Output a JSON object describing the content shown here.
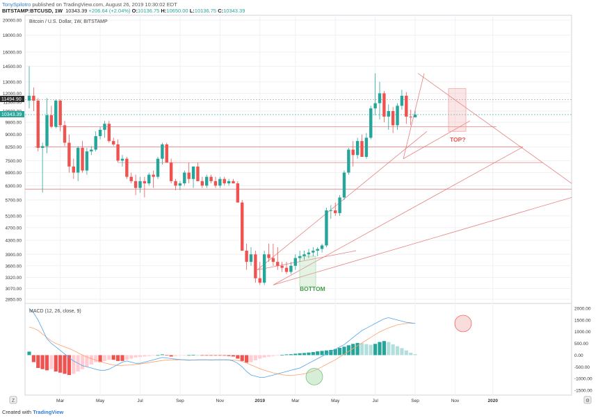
{
  "header": {
    "author": "TonySpilotro",
    "published_text": "published on TradingView.com, August 26, 2019 10:30:02 EDT",
    "symbol": "BITSTAMP:BTCUSD, 1W",
    "last": "10343.39",
    "change": "+206.64 (+2.04%)",
    "open_label": "O:",
    "open": "10136.75",
    "high_label": "H:",
    "high": "10650.00",
    "low_label": "L:",
    "low": "10136.75",
    "close_label": "C:",
    "close": "10343.39"
  },
  "chart_title": "Bitcoin / U.S. Dollar, 1W, BITSTAMP",
  "macd_title": "MACD (12, 26, close, 9)",
  "annotations": {
    "top": "TOP?",
    "bottom": "BOTTOM"
  },
  "price_badges": {
    "high": "11494.90",
    "current": "10343.39"
  },
  "footer": {
    "created": "Created with",
    "brand": "TradingView"
  },
  "colors": {
    "up": "#26a69a",
    "down": "#ef5350",
    "hist_up_dark": "#26a69a",
    "hist_up_light": "#b2dfdb",
    "hist_down_dark": "#ef5350",
    "hist_down_light": "#ffcdd2",
    "macd_line": "#4fa3e8",
    "signal_line": "#ff9f6a",
    "trendline": "#e57373",
    "annotation_top": "#ef5350",
    "annotation_bottom": "#4caf50"
  },
  "chart_data": {
    "type": "candlestick",
    "y_ticks": [
      2850,
      3070,
      3320,
      3600,
      3900,
      4300,
      4700,
      5100,
      5700,
      6300,
      6900,
      7500,
      8250,
      9000,
      9800,
      10600,
      11300,
      12000,
      13000,
      14500,
      16000,
      18000,
      20000
    ],
    "x_ticks": [
      "Mar",
      "May",
      "Jul",
      "Sep",
      "Nov",
      "2019",
      "Mar",
      "May",
      "Jul",
      "Sep",
      "Nov",
      "2020"
    ],
    "candles": [
      {
        "o": 11400,
        "h": 14500,
        "l": 10800,
        "c": 11800
      },
      {
        "o": 11800,
        "h": 12500,
        "l": 10600,
        "c": 11400
      },
      {
        "o": 11400,
        "h": 11600,
        "l": 8000,
        "c": 8200
      },
      {
        "o": 8200,
        "h": 8500,
        "l": 6000,
        "c": 8300
      },
      {
        "o": 8300,
        "h": 11600,
        "l": 7900,
        "c": 10300
      },
      {
        "o": 10300,
        "h": 11000,
        "l": 9400,
        "c": 9500
      },
      {
        "o": 9500,
        "h": 11500,
        "l": 9400,
        "c": 11400
      },
      {
        "o": 11400,
        "h": 11500,
        "l": 9200,
        "c": 9600
      },
      {
        "o": 9600,
        "h": 9900,
        "l": 8300,
        "c": 8500
      },
      {
        "o": 8500,
        "h": 9000,
        "l": 6900,
        "c": 7200
      },
      {
        "o": 7200,
        "h": 7600,
        "l": 6600,
        "c": 6900
      },
      {
        "o": 6900,
        "h": 8300,
        "l": 6500,
        "c": 8200
      },
      {
        "o": 8200,
        "h": 8600,
        "l": 6900,
        "c": 7000
      },
      {
        "o": 7000,
        "h": 8200,
        "l": 6800,
        "c": 8000
      },
      {
        "o": 8000,
        "h": 8300,
        "l": 7800,
        "c": 8100
      },
      {
        "o": 8100,
        "h": 9200,
        "l": 8000,
        "c": 8900
      },
      {
        "o": 8900,
        "h": 9500,
        "l": 8700,
        "c": 9300
      },
      {
        "o": 9300,
        "h": 9900,
        "l": 8800,
        "c": 9700
      },
      {
        "o": 9700,
        "h": 9900,
        "l": 8500,
        "c": 8600
      },
      {
        "o": 8600,
        "h": 8800,
        "l": 8300,
        "c": 8400
      },
      {
        "o": 8400,
        "h": 8700,
        "l": 7400,
        "c": 7500
      },
      {
        "o": 7500,
        "h": 7800,
        "l": 7200,
        "c": 7600
      },
      {
        "o": 7600,
        "h": 7700,
        "l": 6600,
        "c": 6700
      },
      {
        "o": 6700,
        "h": 6900,
        "l": 6400,
        "c": 6500
      },
      {
        "o": 6500,
        "h": 6800,
        "l": 5900,
        "c": 6200
      },
      {
        "o": 6200,
        "h": 6700,
        "l": 6000,
        "c": 6500
      },
      {
        "o": 6500,
        "h": 6700,
        "l": 5800,
        "c": 6400
      },
      {
        "o": 6400,
        "h": 6900,
        "l": 6300,
        "c": 6800
      },
      {
        "o": 6800,
        "h": 7000,
        "l": 6200,
        "c": 6700
      },
      {
        "o": 6700,
        "h": 7700,
        "l": 6600,
        "c": 7600
      },
      {
        "o": 7600,
        "h": 8500,
        "l": 7300,
        "c": 8400
      },
      {
        "o": 8400,
        "h": 8500,
        "l": 7400,
        "c": 7400
      },
      {
        "o": 7400,
        "h": 7600,
        "l": 6400,
        "c": 6500
      },
      {
        "o": 6500,
        "h": 6600,
        "l": 6100,
        "c": 6300
      },
      {
        "o": 6300,
        "h": 6500,
        "l": 6100,
        "c": 6400
      },
      {
        "o": 6400,
        "h": 7000,
        "l": 6300,
        "c": 6900
      },
      {
        "o": 6900,
        "h": 7400,
        "l": 6400,
        "c": 6600
      },
      {
        "o": 6600,
        "h": 7200,
        "l": 6200,
        "c": 7200
      },
      {
        "o": 7200,
        "h": 7400,
        "l": 6500,
        "c": 6500
      },
      {
        "o": 6500,
        "h": 6700,
        "l": 6200,
        "c": 6300
      },
      {
        "o": 6300,
        "h": 6800,
        "l": 6200,
        "c": 6700
      },
      {
        "o": 6700,
        "h": 6800,
        "l": 6400,
        "c": 6500
      },
      {
        "o": 6500,
        "h": 6700,
        "l": 6200,
        "c": 6300
      },
      {
        "o": 6300,
        "h": 6700,
        "l": 6200,
        "c": 6600
      },
      {
        "o": 6600,
        "h": 6700,
        "l": 6300,
        "c": 6400
      },
      {
        "o": 6400,
        "h": 6600,
        "l": 6300,
        "c": 6500
      },
      {
        "o": 6500,
        "h": 6600,
        "l": 6400,
        "c": 6400
      },
      {
        "o": 6400,
        "h": 6500,
        "l": 5600,
        "c": 5600
      },
      {
        "o": 5600,
        "h": 5700,
        "l": 4000,
        "c": 4000
      },
      {
        "o": 4000,
        "h": 4200,
        "l": 3500,
        "c": 3700
      },
      {
        "o": 3700,
        "h": 4100,
        "l": 3600,
        "c": 3900
      },
      {
        "o": 3900,
        "h": 4000,
        "l": 3200,
        "c": 3300
      },
      {
        "o": 3300,
        "h": 3700,
        "l": 3150,
        "c": 3200
      },
      {
        "o": 3200,
        "h": 4000,
        "l": 3150,
        "c": 3900
      },
      {
        "o": 3900,
        "h": 4200,
        "l": 3700,
        "c": 3800
      },
      {
        "o": 3800,
        "h": 4200,
        "l": 3600,
        "c": 3700
      },
      {
        "o": 3700,
        "h": 4100,
        "l": 3500,
        "c": 3600
      },
      {
        "o": 3600,
        "h": 3700,
        "l": 3450,
        "c": 3550
      },
      {
        "o": 3550,
        "h": 3700,
        "l": 3400,
        "c": 3450
      },
      {
        "o": 3450,
        "h": 3700,
        "l": 3400,
        "c": 3600
      },
      {
        "o": 3600,
        "h": 3900,
        "l": 3500,
        "c": 3800
      },
      {
        "o": 3800,
        "h": 4000,
        "l": 3700,
        "c": 3850
      },
      {
        "o": 3850,
        "h": 4000,
        "l": 3750,
        "c": 3900
      },
      {
        "o": 3900,
        "h": 4050,
        "l": 3800,
        "c": 3950
      },
      {
        "o": 3950,
        "h": 4100,
        "l": 3850,
        "c": 4000
      },
      {
        "o": 4000,
        "h": 4100,
        "l": 3850,
        "c": 4050
      },
      {
        "o": 4050,
        "h": 4200,
        "l": 3950,
        "c": 4150
      },
      {
        "o": 4150,
        "h": 5400,
        "l": 4100,
        "c": 5300
      },
      {
        "o": 5300,
        "h": 5500,
        "l": 5000,
        "c": 5300
      },
      {
        "o": 5300,
        "h": 5600,
        "l": 5100,
        "c": 5200
      },
      {
        "o": 5200,
        "h": 5900,
        "l": 5100,
        "c": 5800
      },
      {
        "o": 5800,
        "h": 7000,
        "l": 5700,
        "c": 6900
      },
      {
        "o": 6900,
        "h": 8200,
        "l": 6800,
        "c": 8100
      },
      {
        "o": 8100,
        "h": 8600,
        "l": 7200,
        "c": 7800
      },
      {
        "o": 7800,
        "h": 8800,
        "l": 7600,
        "c": 8600
      },
      {
        "o": 8600,
        "h": 9000,
        "l": 7700,
        "c": 7700
      },
      {
        "o": 7700,
        "h": 9100,
        "l": 7600,
        "c": 8800
      },
      {
        "o": 8800,
        "h": 11000,
        "l": 8700,
        "c": 10800
      },
      {
        "o": 10800,
        "h": 13800,
        "l": 10300,
        "c": 11200
      },
      {
        "o": 11200,
        "h": 13000,
        "l": 10000,
        "c": 12000
      },
      {
        "o": 12000,
        "h": 12200,
        "l": 9800,
        "c": 10200
      },
      {
        "o": 10200,
        "h": 11100,
        "l": 9300,
        "c": 10600
      },
      {
        "o": 10600,
        "h": 10900,
        "l": 9100,
        "c": 9600
      },
      {
        "o": 9600,
        "h": 11200,
        "l": 9300,
        "c": 11000
      },
      {
        "o": 11000,
        "h": 12300,
        "l": 10700,
        "c": 11800
      },
      {
        "o": 11800,
        "h": 12100,
        "l": 9700,
        "c": 10200
      },
      {
        "o": 10200,
        "h": 10700,
        "l": 9600,
        "c": 10150
      },
      {
        "o": 10150,
        "h": 10650,
        "l": 10136,
        "c": 10343
      }
    ],
    "macd": {
      "y_ticks": [
        -1500,
        -1000,
        -500,
        0,
        500,
        1000,
        1500,
        2000
      ],
      "histogram": [
        150,
        -300,
        -550,
        -600,
        -650,
        -600,
        -700,
        -750,
        -800,
        -850,
        -800,
        -700,
        -600,
        -500,
        -400,
        -300,
        -300,
        -250,
        -200,
        -200,
        -250,
        -250,
        -200,
        -150,
        -100,
        -80,
        -60,
        -40,
        -20,
        0,
        30,
        -20,
        -60,
        -40,
        -20,
        -10,
        0,
        10,
        0,
        -10,
        -10,
        -10,
        -15,
        -20,
        -25,
        -40,
        -60,
        -150,
        -250,
        -320,
        -300,
        -220,
        -150,
        -100,
        -70,
        -40,
        -10,
        10,
        30,
        40,
        60,
        80,
        90,
        110,
        130,
        160,
        180,
        200,
        220,
        260,
        310,
        360,
        420,
        480,
        520,
        510,
        470,
        440,
        480,
        560,
        600,
        560,
        460,
        380,
        300,
        200,
        100,
        40
      ],
      "macd_line": [
        2000,
        1800,
        1500,
        1100,
        700,
        500,
        350,
        200,
        50,
        -100,
        -250,
        -350,
        -450,
        -500,
        -550,
        -600,
        -650,
        -650,
        -600,
        -500,
        -400,
        -300,
        -250,
        -300,
        -350,
        -350,
        -300,
        -250,
        -200,
        -150,
        -100,
        -120,
        -150,
        -170,
        -190,
        -200,
        -220,
        -210,
        -200,
        -200,
        -200,
        -210,
        -200,
        -200,
        -200,
        -200,
        -250,
        -350,
        -500,
        -700,
        -850,
        -900,
        -950,
        -950,
        -900,
        -850,
        -800,
        -750,
        -700,
        -650,
        -600,
        -550,
        -450,
        -350,
        -250,
        -150,
        -50,
        50,
        150,
        250,
        350,
        450,
        600,
        750,
        900,
        1050,
        1150,
        1250,
        1350,
        1450,
        1550,
        1600,
        1550,
        1500,
        1450,
        1400,
        1380,
        1350
      ],
      "signal_line": [
        1200,
        1150,
        1050,
        900,
        750,
        600,
        500,
        420,
        350,
        280,
        200,
        100,
        0,
        -80,
        -150,
        -220,
        -280,
        -330,
        -380,
        -420,
        -440,
        -440,
        -430,
        -420,
        -400,
        -380,
        -350,
        -320,
        -290,
        -260,
        -230,
        -210,
        -200,
        -200,
        -200,
        -200,
        -210,
        -210,
        -205,
        -200,
        -200,
        -200,
        -200,
        -200,
        -200,
        -205,
        -210,
        -230,
        -270,
        -330,
        -420,
        -500,
        -580,
        -650,
        -700,
        -760,
        -800,
        -840,
        -860,
        -860,
        -850,
        -830,
        -800,
        -750,
        -680,
        -600,
        -500,
        -400,
        -300,
        -200,
        -80,
        40,
        160,
        280,
        400,
        520,
        640,
        760,
        880,
        990,
        1080,
        1160,
        1230,
        1290,
        1320,
        1350,
        1360,
        1360
      ]
    }
  }
}
